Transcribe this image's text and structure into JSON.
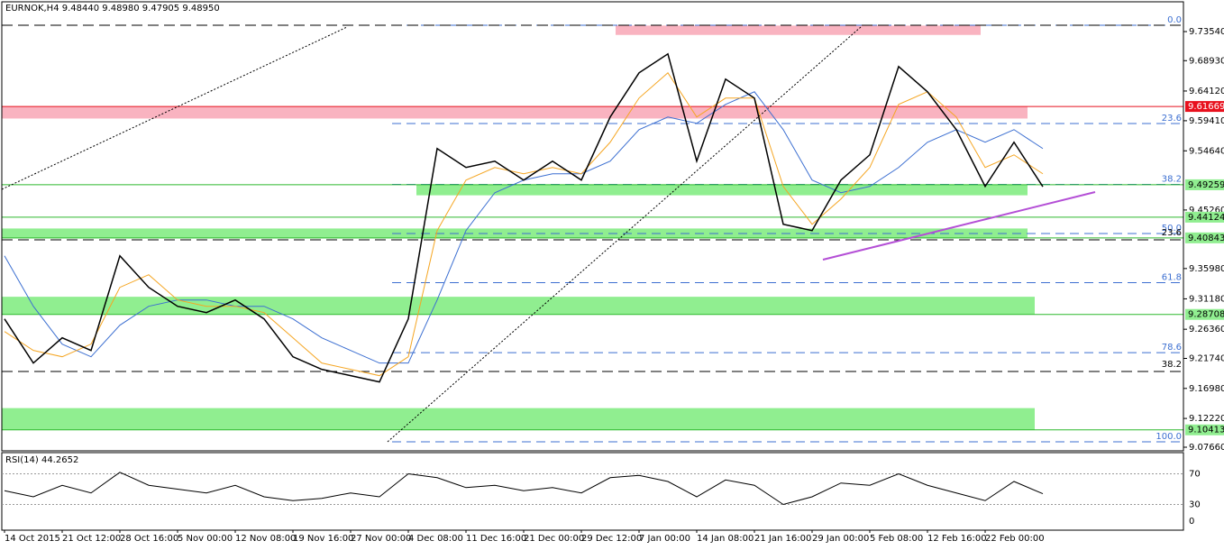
{
  "chart_data": {
    "type": "line",
    "title": "EURNOK,H4  9.48440 9.48980 9.47905 9.48950",
    "categories": [
      "14 Oct 2015",
      null,
      "21 Oct 12:00",
      null,
      "28 Oct 16:00",
      null,
      "5 Nov 00:00",
      null,
      "12 Nov 08:00",
      null,
      "19 Nov 16:00",
      null,
      "27 Nov 00:00",
      null,
      "4 Dec 08:00",
      null,
      "11 Dec 16:00",
      null,
      "21 Dec 00:00",
      null,
      "29 Dec 12:00",
      null,
      "7 Jan 00:00",
      null,
      "14 Jan 08:00",
      null,
      "21 Jan 16:00",
      null,
      "29 Jan 00:00",
      null,
      "5 Feb 08:00",
      null,
      "12 Feb 16:00",
      null,
      "22 Feb 00:00",
      null,
      null
    ],
    "series": [
      {
        "color": "#000000",
        "values": [
          9.28,
          9.21,
          9.25,
          9.23,
          9.38,
          9.33,
          9.3,
          9.29,
          9.31,
          9.28,
          9.22,
          9.2,
          9.19,
          9.18,
          9.28,
          9.55,
          9.52,
          9.53,
          9.5,
          9.53,
          9.5,
          9.6,
          9.67,
          9.7,
          9.53,
          9.66,
          9.63,
          9.43,
          9.42,
          9.5,
          9.54,
          9.68,
          9.64,
          9.58,
          9.49,
          9.56,
          9.4895
        ]
      },
      {
        "color": "#f5a623",
        "values": [
          9.26,
          9.23,
          9.22,
          9.24,
          9.33,
          9.35,
          9.31,
          9.3,
          9.3,
          9.29,
          9.25,
          9.21,
          9.2,
          9.19,
          9.22,
          9.42,
          9.5,
          9.52,
          9.51,
          9.52,
          9.51,
          9.56,
          9.63,
          9.67,
          9.6,
          9.63,
          9.63,
          9.49,
          9.43,
          9.47,
          9.52,
          9.62,
          9.64,
          9.6,
          9.52,
          9.54,
          9.51
        ]
      },
      {
        "color": "#3c6fd1",
        "values": [
          9.38,
          9.3,
          9.24,
          9.22,
          9.27,
          9.3,
          9.31,
          9.31,
          9.3,
          9.3,
          9.28,
          9.25,
          9.23,
          9.21,
          9.21,
          9.31,
          9.42,
          9.48,
          9.5,
          9.51,
          9.51,
          9.53,
          9.58,
          9.6,
          9.59,
          9.62,
          9.64,
          9.58,
          9.5,
          9.48,
          9.49,
          9.52,
          9.56,
          9.58,
          9.56,
          9.58,
          9.55
        ]
      }
    ],
    "ylim": [
      9.0709,
      9.7826
    ],
    "yticks": [
      {
        "value": 9.7354,
        "label": "9.73540"
      },
      {
        "value": 9.6893,
        "label": "9.68930"
      },
      {
        "value": 9.6412,
        "label": "9.64120"
      },
      {
        "value": 9.5941,
        "label": "9.59410"
      },
      {
        "value": 9.5464,
        "label": "9.54640"
      },
      {
        "value": 9.4526,
        "label": "9.45260"
      },
      {
        "value": 9.3598,
        "label": "9.35980"
      },
      {
        "value": 9.3118,
        "label": "9.31180"
      },
      {
        "value": 9.2636,
        "label": "9.26360"
      },
      {
        "value": 9.2174,
        "label": "9.21740"
      },
      {
        "value": 9.1698,
        "label": "9.16980"
      },
      {
        "value": 9.1222,
        "label": "9.12220"
      },
      {
        "value": 9.0766,
        "label": "9.07660"
      }
    ],
    "levels": [
      {
        "value": 9.61669,
        "color": "#e8101d"
      },
      {
        "value": 9.49259,
        "color": "#90ee90"
      },
      {
        "value": 9.44124,
        "color": "#90ee90"
      },
      {
        "value": 9.40843,
        "color": "#90ee90"
      },
      {
        "value": 9.28708,
        "color": "#90ee90"
      },
      {
        "value": 9.10413,
        "color": "#90ee90"
      }
    ],
    "zones": [
      {
        "lo": 9.5976,
        "hi": 9.6167,
        "color": "#f9b3c0"
      },
      {
        "lo": 9.7301,
        "hi": 9.7449,
        "color": "#f9b3c0"
      },
      {
        "lo": 9.4759,
        "hi": 9.4926,
        "color": "#90ee90"
      },
      {
        "lo": 9.4078,
        "hi": 9.4233,
        "color": "#90ee90"
      },
      {
        "lo": 9.2871,
        "hi": 9.3151,
        "color": "#90ee90"
      },
      {
        "lo": 9.1041,
        "hi": 9.1386,
        "color": "#90ee90"
      }
    ],
    "fibs": [
      {
        "value": 9.7454,
        "label": "0.0"
      },
      {
        "value": 9.5896,
        "label": "23.6"
      },
      {
        "value": 9.4932,
        "label": "38.2"
      },
      {
        "value": 9.4153,
        "label": "50.0"
      },
      {
        "value": 9.3374,
        "label": "61.8"
      },
      {
        "value": 9.2265,
        "label": "78.6"
      },
      {
        "value": 9.0852,
        "label": "100.0"
      }
    ],
    "fibs2": [
      {
        "value": 9.4083,
        "label": "23.6"
      },
      {
        "value": 9.1993,
        "label": "38.2"
      }
    ],
    "rsi": {
      "title": "RSI(14) 44.2652",
      "color": "#000000",
      "ylim": [
        0,
        100
      ],
      "yticks": [
        70,
        30,
        0
      ],
      "values": [
        48,
        40,
        55,
        45,
        72,
        55,
        50,
        45,
        55,
        40,
        35,
        38,
        45,
        40,
        70,
        65,
        52,
        55,
        48,
        52,
        45,
        65,
        68,
        60,
        40,
        62,
        55,
        30,
        40,
        58,
        55,
        70,
        55,
        45,
        35,
        60,
        44
      ]
    }
  }
}
